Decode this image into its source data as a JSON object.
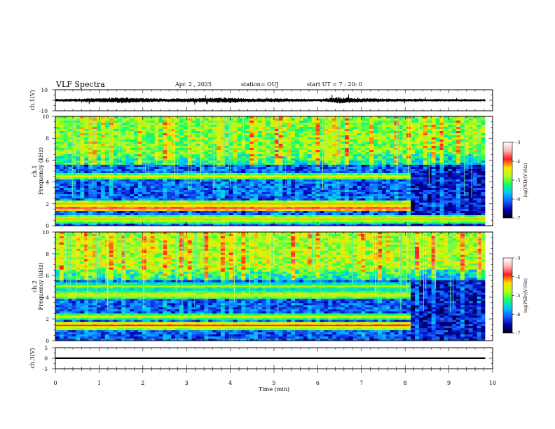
{
  "header": {
    "title": "VLF Spectra",
    "date": "Apr. 2 , 2025",
    "station": "station= OUJ",
    "start": "start UT = 7 : 20: 0"
  },
  "colormap": {
    "stops": [
      "#000018",
      "#0000b0",
      "#1460ff",
      "#00c8ff",
      "#14ff64",
      "#b4ff14",
      "#ffe100",
      "#ff1e1e",
      "#ffb4b4",
      "#ffffff"
    ]
  },
  "chart_data": [
    {
      "type": "line",
      "panel": "waveform-ch1",
      "ylabel": "ch.1(V)",
      "ylim": [
        -10,
        10
      ],
      "yticks": [
        "10",
        "-10"
      ],
      "x_range_min": [
        0,
        10
      ],
      "data_end_min": 9.83,
      "envelope_amplitude_V": {
        "x": [
          0,
          0.5,
          1.0,
          1.5,
          2.0,
          2.5,
          3.0,
          3.5,
          4.0,
          4.5,
          5.0,
          5.5,
          6.0,
          6.5,
          7.0,
          7.5,
          8.0,
          8.5,
          9.0,
          9.5,
          9.83
        ],
        "y": [
          1.2,
          1.5,
          2.0,
          2.6,
          2.0,
          1.6,
          1.8,
          2.2,
          2.4,
          1.6,
          1.8,
          1.4,
          1.2,
          2.8,
          2.0,
          1.5,
          1.4,
          1.2,
          1.2,
          1.1,
          1.0
        ]
      }
    },
    {
      "type": "heatmap",
      "panel": "spectrogram-ch1",
      "ylabel": "ch.1 Frequency (kHz)",
      "ylim": [
        0,
        10
      ],
      "yticks": [
        "0",
        "2",
        "4",
        "6",
        "8",
        "10"
      ],
      "x_range_min": [
        0,
        10
      ],
      "data_end_min": 9.83,
      "colorbar": {
        "label": "log(PSD)(V²/Hz)",
        "range": [
          -7,
          -3
        ],
        "ticks": [
          "-3",
          "-4",
          "-5",
          "-6",
          "-7"
        ]
      },
      "bands": [
        {
          "f_khz": 1.6,
          "log_psd": -4.0,
          "until_min": 8.1
        },
        {
          "f_khz": 2.0,
          "log_psd": -4.5,
          "until_min": 8.1
        },
        {
          "f_khz": 0.6,
          "log_psd": -4.5
        },
        {
          "f_khz": 4.5,
          "log_psd": -4.7,
          "until_min": 8.1
        }
      ],
      "high_freq_noise_log_psd": -5.0
    },
    {
      "type": "heatmap",
      "panel": "spectrogram-ch2",
      "ylabel": "ch.2 Frequency (kHz)",
      "ylim": [
        0,
        10
      ],
      "yticks": [
        "0",
        "2",
        "4",
        "6",
        "8",
        "10"
      ],
      "x_range_min": [
        0,
        10
      ],
      "data_end_min": 9.83,
      "colorbar": {
        "label": "log(PSD)(V²/Hz)",
        "range": [
          -7,
          -3
        ],
        "ticks": [
          "-3",
          "-4",
          "-5",
          "-6",
          "-7"
        ]
      },
      "bands": [
        {
          "f_khz": 1.4,
          "log_psd": -4.2,
          "until_min": 8.1
        },
        {
          "f_khz": 2.2,
          "log_psd": -4.8,
          "until_min": 8.1
        },
        {
          "f_khz": 4.2,
          "log_psd": -4.6,
          "until_min": 8.1
        },
        {
          "f_khz": 5.0,
          "log_psd": -5.0,
          "until_min": 8.1
        }
      ],
      "high_freq_noise_log_psd": -4.8
    },
    {
      "type": "line",
      "panel": "waveform-ch3",
      "ylabel": "ch.3(V)",
      "ylim": [
        -5,
        5
      ],
      "yticks": [
        "5",
        "0",
        "-5"
      ],
      "x_range_min": [
        0,
        10
      ],
      "data_end_min": 9.83,
      "xlabel": "Time (min)",
      "xticks": [
        "0",
        "1",
        "2",
        "3",
        "4",
        "5",
        "6",
        "7",
        "8",
        "9",
        "10"
      ],
      "level_V": 0.0,
      "band_halfwidth_V": 0.35
    }
  ]
}
